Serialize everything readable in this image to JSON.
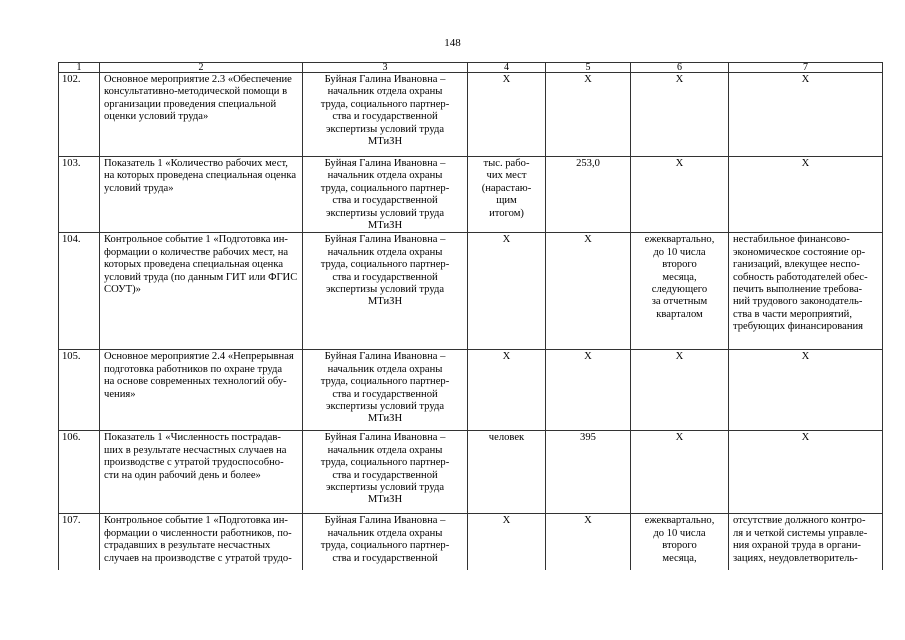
{
  "page_number": "148",
  "table": {
    "headers": [
      "1",
      "2",
      "3",
      "4",
      "5",
      "6",
      "7"
    ],
    "rows": [
      {
        "num": "102.",
        "name": "Основное мероприятие 2.3 «Обеспечение\nконсультативно-методической помощи в\nорганизации проведения специальной\nоценки условий труда»",
        "responsible": "Буйная Галина Ивановна –\nначальник отдела охраны\nтруда, социального партнер-\nства и государственной\nэкспертизы условий труда\nМТиЗН",
        "unit": "X",
        "value": "X",
        "deadline": "X",
        "risk": "X"
      },
      {
        "num": "103.",
        "name": "Показатель 1 «Количество рабочих мест,\nна которых проведена специальная оценка\nусловий труда»",
        "responsible": "Буйная Галина Ивановна –\nначальник отдела охраны\nтруда, социального партнер-\nства и государственной\nэкспертизы условий труда\nМТиЗН",
        "unit": "тыс. рабо-\nчих мест\n(нарастаю-\nщим\nитогом)",
        "value": "253,0",
        "deadline": "X",
        "risk": "X"
      },
      {
        "num": "104.",
        "name": "Контрольное событие 1 «Подготовка ин-\nформации о количестве рабочих мест, на\nкоторых проведена специальная оценка\nусловий труда (по данным ГИТ или ФГИС\nСОУТ)»",
        "responsible": "Буйная Галина Ивановна –\nначальник отдела охраны\nтруда, социального партнер-\nства и государственной\nэкспертизы условий труда\nМТиЗН",
        "unit": "X",
        "value": "X",
        "deadline": "ежеквартально,\nдо 10 числа\nвторого\nмесяца,\nследующего\nза отчетным\nкварталом",
        "risk": "нестабильное финансово-\nэкономическое состояние ор-\nганизаций, влекущее неспо-\nсобность работодателей обес-\nпечить выполнение требова-\nний трудового законодатель-\nства в части мероприятий,\nтребующих финансирования"
      },
      {
        "num": "105.",
        "name": "Основное мероприятие 2.4 «Непрерывная\nподготовка работников по охране труда\nна основе современных технологий обу-\nчения»",
        "responsible": "Буйная Галина Ивановна –\nначальник отдела охраны\nтруда, социального партнер-\nства и государственной\nэкспертизы условий труда\nМТиЗН",
        "unit": "X",
        "value": "X",
        "deadline": "X",
        "risk": "X"
      },
      {
        "num": "106.",
        "name": "Показатель 1 «Численность пострадав-\nших в результате несчастных случаев на\nпроизводстве с утратой трудоспособно-\nсти на один рабочий день и более»",
        "responsible": "Буйная Галина Ивановна –\nначальник отдела охраны\nтруда, социального партнер-\nства и государственной\nэкспертизы условий труда\nМТиЗН",
        "unit": "человек",
        "value": "395",
        "deadline": "X",
        "risk": "X"
      },
      {
        "num": "107.",
        "name": "Контрольное событие 1 «Подготовка ин-\nформации о численности  работников, по-\nстрадавших в      результате несчастных\nслучаев на производстве с утратой трудо-",
        "responsible": "Буйная Галина Ивановна –\nначальник отдела охраны\nтруда, социального партнер-\nства и государственной",
        "unit": "X",
        "value": "X",
        "deadline": "ежеквартально,\nдо 10 числа\nвторого\nмесяца,",
        "risk": "отсутствие должного контро-\nля и четкой системы управле-\nния охраной труда в органи-\nзациях, неудовлетворитель-"
      }
    ]
  }
}
